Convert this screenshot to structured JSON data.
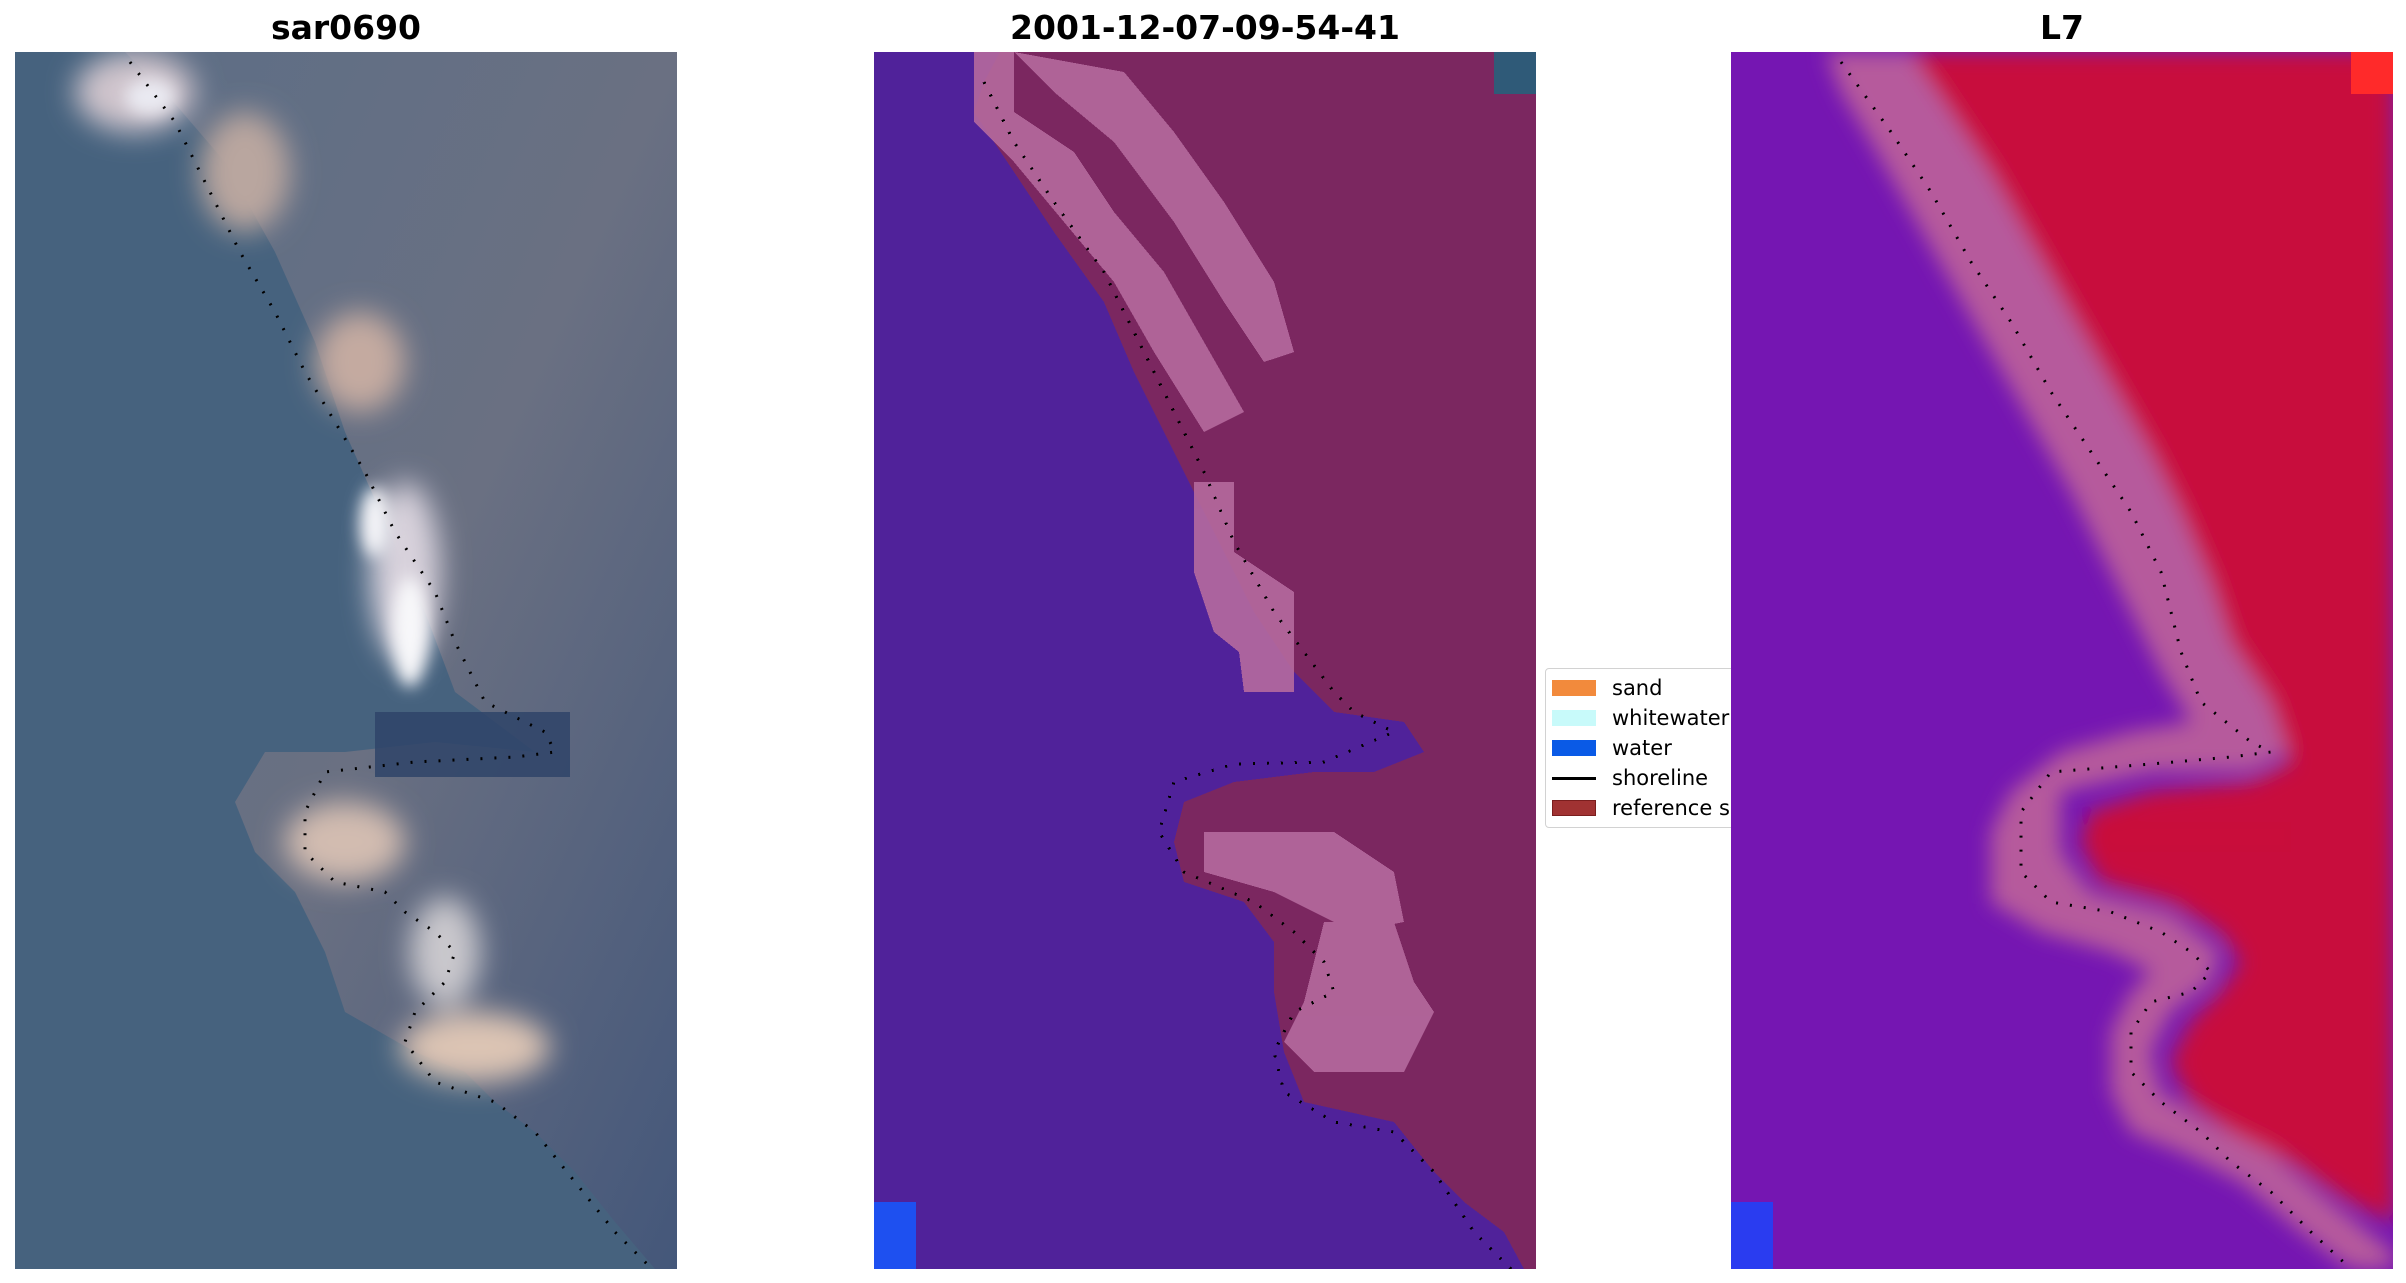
{
  "panels": [
    {
      "title": "sar0690"
    },
    {
      "title": "2001-12-07-09-54-41"
    },
    {
      "title": "L7"
    }
  ],
  "legend": {
    "items": [
      {
        "label": "sand",
        "color": "#f28a3c",
        "kind": "patch"
      },
      {
        "label": "whitewater",
        "color": "#c8fafa",
        "kind": "patch"
      },
      {
        "label": "water",
        "color": "#0a5ae6",
        "kind": "patch"
      },
      {
        "label": "shoreline",
        "color": "#000000",
        "kind": "line"
      },
      {
        "label": "reference s",
        "color": "#a03232",
        "kind": "patch"
      }
    ]
  },
  "colors": {
    "rgb_water": "#46627e",
    "rgb_land": "#6b7284",
    "rgb_sand": "#c7b2a6",
    "rgb_white": "#f4f4f8",
    "cls_water": "#50229a",
    "cls_land": "#7b2760",
    "cls_beach": "#b56a9e",
    "cls_corner": "#2f5a78",
    "cls_blue": "#1e50f0",
    "mndwi_water": "#7516b2",
    "mndwi_land": "#c8103e",
    "mndwi_edge": "#b65a9c",
    "mndwi_corner": "#ff2a2a",
    "mndwi_blue": "#2a3cf0"
  }
}
